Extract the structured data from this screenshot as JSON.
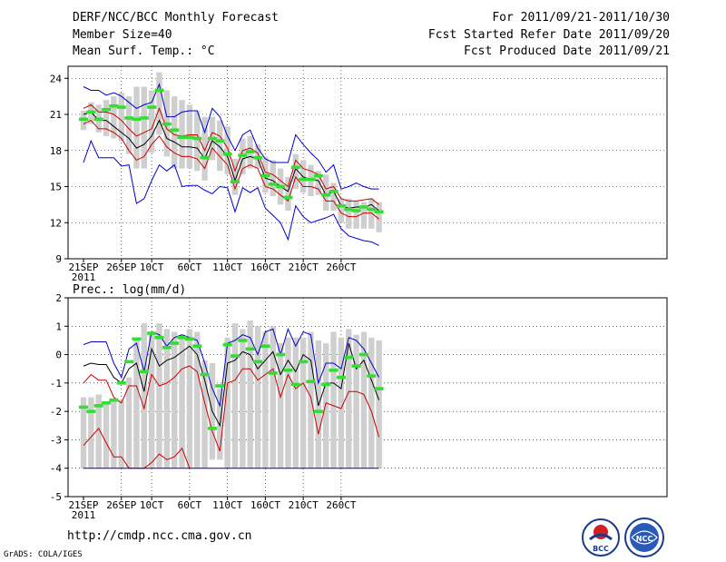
{
  "header": {
    "title": "DERF/NCC/BCC Monthly Forecast",
    "member_size": "Member Size=40",
    "variable": "Mean Surf. Temp.: °C",
    "period": "For 2011/09/21-2011/10/30",
    "start_date": "Fcst Started Refer Date 2011/09/20",
    "produced_date": "Fcst Produced Date 2011/09/21"
  },
  "footer": {
    "url": "http://cmdp.ncc.cma.gov.cn",
    "credit": "GrADS: COLA/IGES",
    "logo_bcc": "BCC",
    "logo_ncc": "NCC"
  },
  "colors": {
    "outer": "#0000cc",
    "inner": "#cc0000",
    "median": "#000000",
    "box": "#cfcfcf",
    "obs": "#33dd33"
  },
  "chart_data": [
    {
      "type": "box-ensemble",
      "title": "Mean Surf. Temp.: °C",
      "ylim": [
        9,
        25
      ],
      "yticks": [
        9,
        12,
        15,
        18,
        21,
        24
      ],
      "xticks": [
        {
          "day": 0,
          "label": "21SEP",
          "sub": "2011"
        },
        {
          "day": 5,
          "label": "26SEP"
        },
        {
          "day": 9,
          "label": "10CT"
        },
        {
          "day": 14,
          "label": "60CT"
        },
        {
          "day": 19,
          "label": "110CT"
        },
        {
          "day": 24,
          "label": "160CT"
        },
        {
          "day": 29,
          "label": "210CT"
        },
        {
          "day": 34,
          "label": "260CT"
        }
      ],
      "days": 39,
      "box_low": [
        19.7,
        20.2,
        19.5,
        19.2,
        19.0,
        18.8,
        17.7,
        16.5,
        16.5,
        17.8,
        19.3,
        17.5,
        16.5,
        16.5,
        16.5,
        16.3,
        15.5,
        17.2,
        16.3,
        16.0,
        14.3,
        16.0,
        16.5,
        16.5,
        14.5,
        14.2,
        13.5,
        13.0,
        14.8,
        14.5,
        14.2,
        14.3,
        13.0,
        13.0,
        12.0,
        11.5,
        11.5,
        11.5,
        11.5,
        11.2
      ],
      "box_high": [
        21.3,
        22.0,
        21.8,
        22.2,
        22.5,
        22.8,
        22.5,
        23.3,
        23.3,
        23.0,
        24.5,
        23.0,
        22.5,
        22.2,
        21.8,
        21.3,
        20.8,
        20.8,
        20.5,
        20.0,
        17.3,
        19.0,
        19.2,
        18.5,
        17.5,
        17.2,
        16.5,
        15.8,
        17.7,
        17.2,
        16.8,
        16.3,
        16.0,
        15.3,
        14.0,
        14.0,
        13.8,
        13.7,
        14.0,
        13.7
      ],
      "obs": [
        20.6,
        21.2,
        20.6,
        21.4,
        21.7,
        21.6,
        20.7,
        20.6,
        20.7,
        21.6,
        23.0,
        20.2,
        19.7,
        19.1,
        19.1,
        19.0,
        17.4,
        19.0,
        18.8,
        17.7,
        15.4,
        17.6,
        17.9,
        17.4,
        15.9,
        15.2,
        15.0,
        14.1,
        16.6,
        15.6,
        15.6,
        15.9,
        14.3,
        14.6,
        13.4,
        13.1,
        13.0,
        13.3,
        13.1,
        12.9
      ],
      "series": [
        {
          "name": "max",
          "color": "#0000cc",
          "values": [
            23.3,
            23.0,
            23.0,
            22.6,
            22.8,
            22.5,
            22.0,
            21.5,
            21.8,
            22.0,
            23.5,
            20.8,
            20.8,
            21.2,
            21.3,
            21.3,
            19.5,
            21.5,
            20.8,
            19.2,
            18.0,
            19.3,
            19.7,
            18.2,
            17.3,
            17.0,
            17.0,
            17.0,
            19.3,
            18.5,
            17.8,
            17.2,
            16.2,
            16.8,
            14.8,
            15.0,
            15.3,
            15.0,
            14.8,
            14.8
          ]
        },
        {
          "name": "upper",
          "color": "#cc0000",
          "values": [
            21.5,
            21.8,
            21.2,
            21.2,
            21.0,
            20.5,
            19.8,
            19.2,
            19.5,
            19.8,
            21.5,
            19.8,
            19.3,
            19.2,
            19.3,
            19.3,
            18.0,
            19.5,
            19.2,
            18.2,
            16.3,
            18.0,
            18.2,
            17.8,
            16.2,
            16.0,
            15.5,
            15.0,
            17.2,
            16.5,
            16.3,
            16.0,
            14.8,
            15.0,
            14.0,
            13.8,
            13.8,
            13.9,
            14.0,
            13.5
          ]
        },
        {
          "name": "median",
          "color": "#000000",
          "values": [
            21.0,
            21.2,
            20.5,
            20.5,
            20.0,
            19.5,
            19.0,
            18.2,
            18.5,
            19.2,
            20.5,
            19.0,
            18.7,
            18.3,
            18.3,
            18.2,
            17.3,
            18.8,
            18.3,
            17.5,
            15.5,
            17.3,
            17.5,
            17.3,
            15.7,
            15.5,
            15.0,
            14.6,
            16.5,
            15.8,
            15.6,
            15.5,
            14.3,
            14.6,
            13.4,
            13.2,
            13.3,
            13.3,
            13.5,
            13.0
          ]
        },
        {
          "name": "lower",
          "color": "#cc0000",
          "values": [
            20.2,
            20.5,
            19.8,
            19.8,
            19.5,
            19.0,
            18.0,
            17.2,
            17.5,
            18.5,
            19.2,
            18.3,
            17.8,
            17.5,
            17.5,
            17.3,
            16.5,
            18.2,
            17.5,
            16.8,
            14.8,
            16.5,
            16.8,
            16.5,
            15.0,
            14.8,
            14.3,
            13.8,
            15.8,
            15.0,
            15.0,
            14.8,
            13.8,
            13.8,
            12.8,
            12.5,
            12.5,
            12.8,
            12.8,
            12.3
          ]
        },
        {
          "name": "min",
          "color": "#0000cc",
          "values": [
            17.0,
            18.8,
            17.4,
            17.4,
            17.4,
            16.7,
            16.8,
            13.6,
            14.0,
            15.5,
            16.8,
            16.3,
            16.8,
            15.0,
            15.1,
            15.1,
            14.7,
            14.4,
            15.0,
            14.9,
            12.9,
            14.9,
            14.5,
            14.9,
            13.2,
            12.6,
            12.0,
            10.6,
            13.4,
            12.5,
            12.0,
            12.2,
            12.4,
            12.7,
            11.5,
            10.9,
            10.7,
            10.5,
            10.4,
            10.1
          ]
        }
      ]
    },
    {
      "type": "box-ensemble",
      "title": "Prec.: log(mm/d)",
      "ylim": [
        -5,
        2
      ],
      "yticks": [
        -5,
        -4,
        -3,
        -2,
        -1,
        0,
        1,
        2
      ],
      "xticks": [
        {
          "day": 0,
          "label": "21SEP",
          "sub": "2011"
        },
        {
          "day": 5,
          "label": "26SEP"
        },
        {
          "day": 9,
          "label": "10CT"
        },
        {
          "day": 14,
          "label": "60CT"
        },
        {
          "day": 19,
          "label": "110CT"
        },
        {
          "day": 24,
          "label": "160CT"
        },
        {
          "day": 29,
          "label": "210CT"
        },
        {
          "day": 34,
          "label": "260CT"
        }
      ],
      "days": 39,
      "box_low": [
        -4.0,
        -4.0,
        -4.0,
        -4.0,
        -4.0,
        -4.0,
        -4.0,
        -4.0,
        -4.0,
        -4.0,
        -4.0,
        -4.0,
        -4.0,
        -4.0,
        -4.0,
        -4.0,
        -4.0,
        -3.7,
        -3.7,
        -4.0,
        -4.0,
        -4.0,
        -4.0,
        -4.0,
        -4.0,
        -4.0,
        -4.0,
        -4.0,
        -4.0,
        -4.0,
        -4.0,
        -4.0,
        -4.0,
        -4.0,
        -4.0,
        -4.0,
        -4.0,
        -4.0,
        -4.0,
        -4.0
      ],
      "box_high": [
        -1.5,
        -1.5,
        -1.4,
        -1.7,
        -1.6,
        -1.6,
        -0.8,
        0.5,
        1.1,
        0.7,
        1.1,
        0.9,
        0.8,
        0.7,
        0.9,
        0.8,
        -0.2,
        -0.3,
        -1.2,
        0.6,
        1.1,
        0.9,
        1.2,
        1.0,
        0.8,
        1.0,
        0.4,
        0.6,
        0.6,
        0.6,
        0.8,
        0.5,
        0.4,
        0.8,
        0.6,
        0.9,
        0.7,
        0.8,
        0.6,
        0.5
      ],
      "obs": [
        -1.85,
        -2.0,
        -1.8,
        -1.7,
        -1.6,
        -1.0,
        -0.25,
        0.55,
        -0.6,
        0.75,
        0.6,
        0.25,
        0.4,
        0.6,
        0.55,
        0.3,
        -0.7,
        -2.6,
        -1.1,
        0.35,
        -0.05,
        0.5,
        0.2,
        -0.25,
        0.3,
        -0.65,
        0.0,
        -0.55,
        -1.05,
        -0.25,
        -0.95,
        -2.0,
        -1.05,
        -0.55,
        -0.8,
        -0.1,
        -0.4,
        0.0,
        -0.75,
        -1.2
      ],
      "series": [
        {
          "name": "max",
          "color": "#0000cc",
          "values": [
            0.35,
            0.45,
            0.45,
            0.45,
            -0.3,
            -0.8,
            0.2,
            0.4,
            -0.6,
            0.8,
            0.7,
            0.3,
            0.6,
            0.7,
            0.6,
            0.5,
            -0.3,
            -1.2,
            -1.8,
            0.4,
            0.5,
            0.7,
            0.6,
            0.0,
            0.8,
            0.9,
            0.0,
            0.9,
            0.3,
            0.8,
            0.7,
            -1.0,
            -0.3,
            -0.3,
            -0.5,
            0.6,
            0.5,
            0.2,
            -0.3,
            -0.8
          ]
        },
        {
          "name": "median",
          "color": "#000000",
          "values": [
            -0.4,
            -0.3,
            -0.35,
            -0.35,
            -0.8,
            -1.0,
            -0.5,
            -0.3,
            -1.3,
            0.2,
            -0.4,
            -0.2,
            -0.1,
            0.1,
            0.3,
            0.0,
            -0.9,
            -2.0,
            -2.5,
            -0.3,
            -0.2,
            0.1,
            0.0,
            -0.5,
            -0.2,
            0.1,
            -0.7,
            -0.2,
            -0.6,
            0.0,
            -0.2,
            -1.8,
            -1.0,
            -1.0,
            -1.2,
            0.4,
            -0.5,
            -0.2,
            -0.9,
            -1.6
          ]
        },
        {
          "name": "inner",
          "color": "#cc0000",
          "values": [
            -1.0,
            -0.7,
            -0.9,
            -0.9,
            -1.5,
            -1.7,
            -1.1,
            -1.1,
            -1.9,
            -0.7,
            -1.1,
            -1.0,
            -0.8,
            -0.5,
            -0.4,
            -0.6,
            -1.7,
            -2.7,
            -3.4,
            -1.0,
            -0.9,
            -0.5,
            -0.5,
            -0.9,
            -0.7,
            -0.5,
            -1.5,
            -0.7,
            -1.2,
            -1.0,
            -1.5,
            -2.8,
            -1.7,
            -1.8,
            -1.9,
            -1.3,
            -1.3,
            -1.4,
            -2.0,
            -2.9
          ]
        },
        {
          "name": "lower",
          "color": "#cc0000",
          "values": [
            -3.2,
            -2.9,
            -2.6,
            -3.1,
            -3.6,
            -3.6,
            -4.0,
            -4.0,
            -4.0,
            -3.8,
            -3.5,
            -3.7,
            -3.6,
            -3.3,
            -4.0,
            null,
            null,
            null,
            null,
            null,
            null,
            null,
            null,
            null,
            null,
            null,
            null,
            null,
            null,
            null,
            null,
            null,
            null,
            null,
            null,
            null,
            null,
            null,
            null,
            null
          ]
        },
        {
          "name": "min",
          "color": "#0000cc",
          "values": [
            -4.0,
            -4.0,
            -4.0,
            -4.0,
            -4.0,
            -4.0,
            -4.0,
            -4.0,
            -4.0,
            -4.0,
            -4.0,
            -4.0,
            -4.0,
            -4.0,
            -4.0,
            -4.0,
            -4.0,
            -4.0,
            -4.0,
            -4.0,
            -4.0,
            -4.0,
            -4.0,
            -4.0,
            -4.0,
            -4.0,
            -4.0,
            -4.0,
            -4.0,
            -4.0,
            -4.0,
            -4.0,
            -4.0,
            -4.0,
            -4.0,
            -4.0,
            -4.0,
            -4.0,
            -4.0,
            -4.0
          ]
        }
      ]
    }
  ]
}
